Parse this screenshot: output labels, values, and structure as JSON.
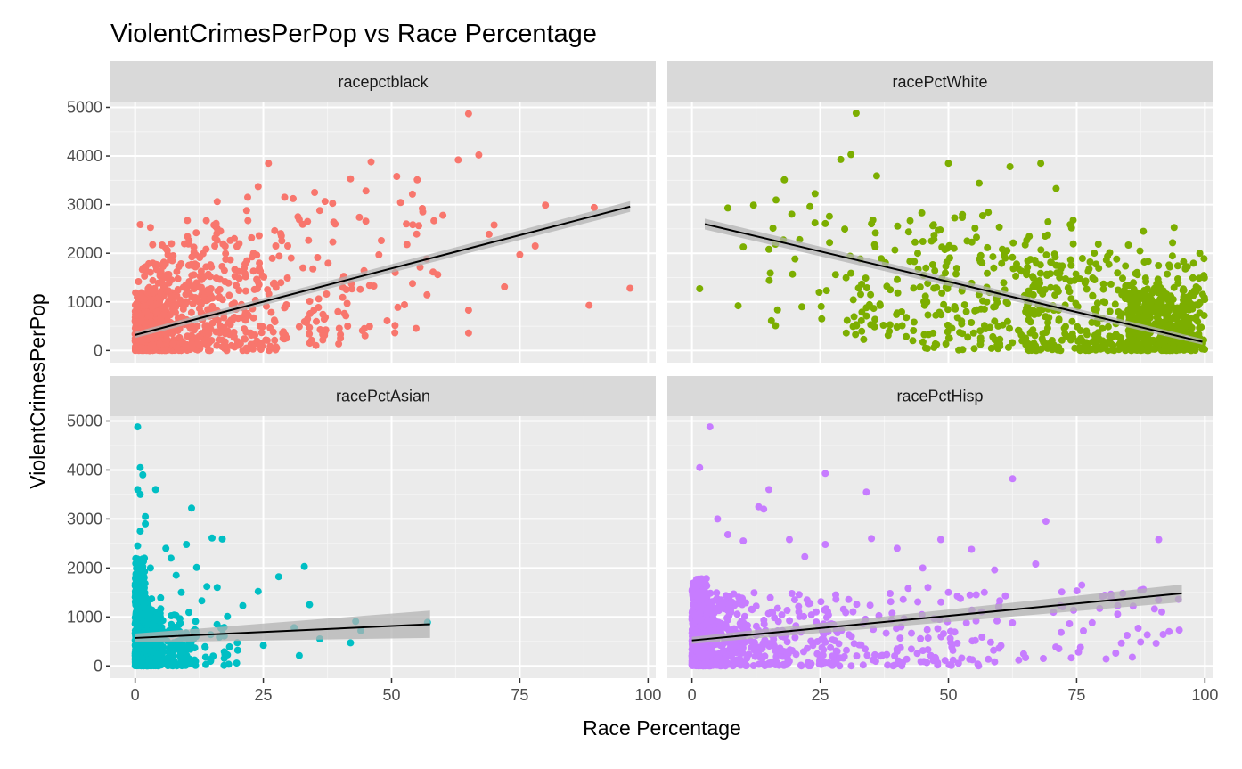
{
  "chart_data": {
    "type": "scatter",
    "title": "ViolentCrimesPerPop vs Race Percentage",
    "xlabel": "Race Percentage",
    "ylabel": "ViolentCrimesPerPop",
    "xlim": [
      -4.8,
      101.5
    ],
    "ylim": [
      -250,
      5100
    ],
    "x_ticks": [
      0,
      25,
      50,
      75,
      100
    ],
    "y_ticks": [
      0,
      1000,
      2000,
      3000,
      4000,
      5000
    ],
    "grid": true,
    "layout": "facet_wrap 2x2",
    "colors": {
      "panel_bg": "#ebebeb",
      "grid_major": "#ffffff",
      "grid_minor": "#f5f5f5",
      "strip_bg": "#d9d9d9",
      "fit_line": "#000000",
      "ribbon": "#b3b3b3"
    },
    "facets": [
      {
        "label": "racepctblack",
        "color": "#f8766d",
        "fit": {
          "x0": 0,
          "y0": 320,
          "x1": 96.5,
          "y1": 2960,
          "band0": 60,
          "band1": 110
        },
        "ranges": [
          {
            "x": [
              0,
              6
            ],
            "y": [
              0,
              1200
            ],
            "n": 320
          },
          {
            "x": [
              0,
              15
            ],
            "y": [
              0,
              1800
            ],
            "n": 260
          },
          {
            "x": [
              3,
              30
            ],
            "y": [
              0,
              2200
            ],
            "n": 220
          },
          {
            "x": [
              10,
              45
            ],
            "y": [
              100,
              2800
            ],
            "n": 120
          },
          {
            "x": [
              20,
              60
            ],
            "y": [
              300,
              3300
            ],
            "n": 70
          }
        ],
        "points": [
          [
            65,
            4870
          ],
          [
            67,
            4020
          ],
          [
            63,
            3920
          ],
          [
            46,
            3880
          ],
          [
            26,
            3850
          ],
          [
            35,
            3250
          ],
          [
            42,
            3530
          ],
          [
            55,
            3510
          ],
          [
            51,
            3580
          ],
          [
            24,
            3370
          ],
          [
            56,
            2920
          ],
          [
            60,
            2780
          ],
          [
            80,
            2990
          ],
          [
            89.5,
            2940
          ],
          [
            96.5,
            1280
          ],
          [
            88.5,
            930
          ],
          [
            78,
            2150
          ],
          [
            75,
            1970
          ],
          [
            70,
            2580
          ],
          [
            69,
            2390
          ],
          [
            72,
            1310
          ],
          [
            65,
            830
          ],
          [
            65,
            360
          ],
          [
            59,
            1560
          ],
          [
            53,
            2180
          ],
          [
            48,
            2260
          ],
          [
            36,
            2880
          ],
          [
            39,
            2600
          ],
          [
            45,
            3280
          ],
          [
            32,
            2690
          ],
          [
            1,
            2590
          ],
          [
            3,
            2530
          ],
          [
            16,
            3060
          ],
          [
            22,
            2670
          ]
        ]
      },
      {
        "label": "racePctWhite",
        "color": "#7cae00",
        "fit": {
          "x0": 2.5,
          "y0": 2600,
          "x1": 99.5,
          "y1": 180,
          "band0": 110,
          "band1": 60
        },
        "ranges": [
          {
            "x": [
              85,
              100
            ],
            "y": [
              0,
              1300
            ],
            "n": 330
          },
          {
            "x": [
              65,
              100
            ],
            "y": [
              0,
              2000
            ],
            "n": 280
          },
          {
            "x": [
              45,
              100
            ],
            "y": [
              0,
              2400
            ],
            "n": 200
          },
          {
            "x": [
              30,
              75
            ],
            "y": [
              200,
              2900
            ],
            "n": 110
          },
          {
            "x": [
              15,
              60
            ],
            "y": [
              500,
              3300
            ],
            "n": 50
          }
        ],
        "points": [
          [
            32,
            4880
          ],
          [
            29,
            3930
          ],
          [
            31,
            4030
          ],
          [
            50,
            3850
          ],
          [
            68,
            3850
          ],
          [
            36,
            3590
          ],
          [
            62,
            3780
          ],
          [
            71,
            3330
          ],
          [
            56,
            3440
          ],
          [
            74,
            2520
          ],
          [
            94,
            2530
          ],
          [
            88,
            2450
          ],
          [
            99,
            2000
          ],
          [
            1.5,
            1270
          ],
          [
            7,
            2930
          ],
          [
            12,
            2990
          ],
          [
            18,
            3510
          ],
          [
            23,
            2960
          ],
          [
            9,
            920
          ],
          [
            10,
            2130
          ],
          [
            15,
            2080
          ],
          [
            26,
            2610
          ],
          [
            28,
            1560
          ],
          [
            31,
            1590
          ],
          [
            34,
            880
          ],
          [
            40,
            770
          ],
          [
            21,
            2280
          ],
          [
            38,
            1320
          ],
          [
            44,
            2000
          ],
          [
            48,
            2470
          ]
        ]
      },
      {
        "label": "racePctAsian",
        "color": "#00bfc4",
        "fit": {
          "x0": 0,
          "y0": 570,
          "x1": 57.5,
          "y1": 850,
          "band0": 90,
          "band1": 280
        },
        "ranges": [
          {
            "x": [
              0,
              2
            ],
            "y": [
              0,
              2200
            ],
            "n": 360
          },
          {
            "x": [
              0,
              5
            ],
            "y": [
              0,
              1400
            ],
            "n": 260
          },
          {
            "x": [
              2,
              12
            ],
            "y": [
              0,
              1100
            ],
            "n": 120
          },
          {
            "x": [
              5,
              20
            ],
            "y": [
              0,
              900
            ],
            "n": 60
          }
        ],
        "points": [
          [
            0.5,
            4880
          ],
          [
            1,
            4050
          ],
          [
            1.5,
            3900
          ],
          [
            0.5,
            3600
          ],
          [
            1,
            3500
          ],
          [
            4,
            3600
          ],
          [
            2,
            3050
          ],
          [
            1,
            2750
          ],
          [
            0.5,
            2450
          ],
          [
            11,
            3220
          ],
          [
            17,
            2590
          ],
          [
            15,
            2610
          ],
          [
            10,
            2480
          ],
          [
            12,
            2010
          ],
          [
            14,
            1620
          ],
          [
            16,
            1600
          ],
          [
            18,
            1010
          ],
          [
            21,
            1230
          ],
          [
            24,
            1520
          ],
          [
            28,
            1820
          ],
          [
            33,
            2030
          ],
          [
            31,
            780
          ],
          [
            34,
            1250
          ],
          [
            43,
            910
          ],
          [
            44,
            720
          ],
          [
            36,
            550
          ],
          [
            42,
            470
          ],
          [
            32,
            210
          ],
          [
            57,
            890
          ],
          [
            20,
            320
          ],
          [
            25,
            420
          ],
          [
            13,
            1330
          ],
          [
            7,
            2200
          ],
          [
            8,
            1850
          ],
          [
            6,
            2400
          ],
          [
            2,
            2900
          ],
          [
            3,
            2000
          ],
          [
            9,
            1500
          ]
        ]
      },
      {
        "label": "racePctHisp",
        "color": "#c77cff",
        "fit": {
          "x0": 0,
          "y0": 520,
          "x1": 95.5,
          "y1": 1480,
          "band0": 70,
          "band1": 180
        },
        "ranges": [
          {
            "x": [
              0,
              3
            ],
            "y": [
              0,
              1800
            ],
            "n": 320
          },
          {
            "x": [
              0,
              10
            ],
            "y": [
              0,
              1500
            ],
            "n": 240
          },
          {
            "x": [
              2,
              30
            ],
            "y": [
              0,
              1400
            ],
            "n": 220
          },
          {
            "x": [
              10,
              60
            ],
            "y": [
              0,
              1500
            ],
            "n": 120
          },
          {
            "x": [
              30,
              95
            ],
            "y": [
              100,
              1600
            ],
            "n": 90
          }
        ],
        "points": [
          [
            3.5,
            4880
          ],
          [
            1.5,
            4050
          ],
          [
            26,
            3930
          ],
          [
            34,
            3550
          ],
          [
            62.5,
            3820
          ],
          [
            15,
            3600
          ],
          [
            13,
            3250
          ],
          [
            14,
            3200
          ],
          [
            69,
            2950
          ],
          [
            91,
            2580
          ],
          [
            54.5,
            2380
          ],
          [
            48.5,
            2580
          ],
          [
            35,
            2600
          ],
          [
            40,
            2400
          ],
          [
            46,
            1600
          ],
          [
            45,
            2000
          ],
          [
            59,
            1960
          ],
          [
            67,
            2080
          ],
          [
            76,
            1650
          ],
          [
            84,
            1480
          ],
          [
            88,
            1560
          ],
          [
            95,
            730
          ],
          [
            93,
            700
          ],
          [
            80,
            1420
          ],
          [
            83,
            1230
          ],
          [
            86,
            1220
          ],
          [
            50,
            1500
          ],
          [
            57,
            1500
          ],
          [
            60,
            1330
          ],
          [
            26,
            2480
          ],
          [
            19,
            2580
          ],
          [
            22,
            2230
          ],
          [
            7,
            2680
          ],
          [
            10,
            2550
          ],
          [
            5,
            3000
          ]
        ]
      }
    ]
  }
}
